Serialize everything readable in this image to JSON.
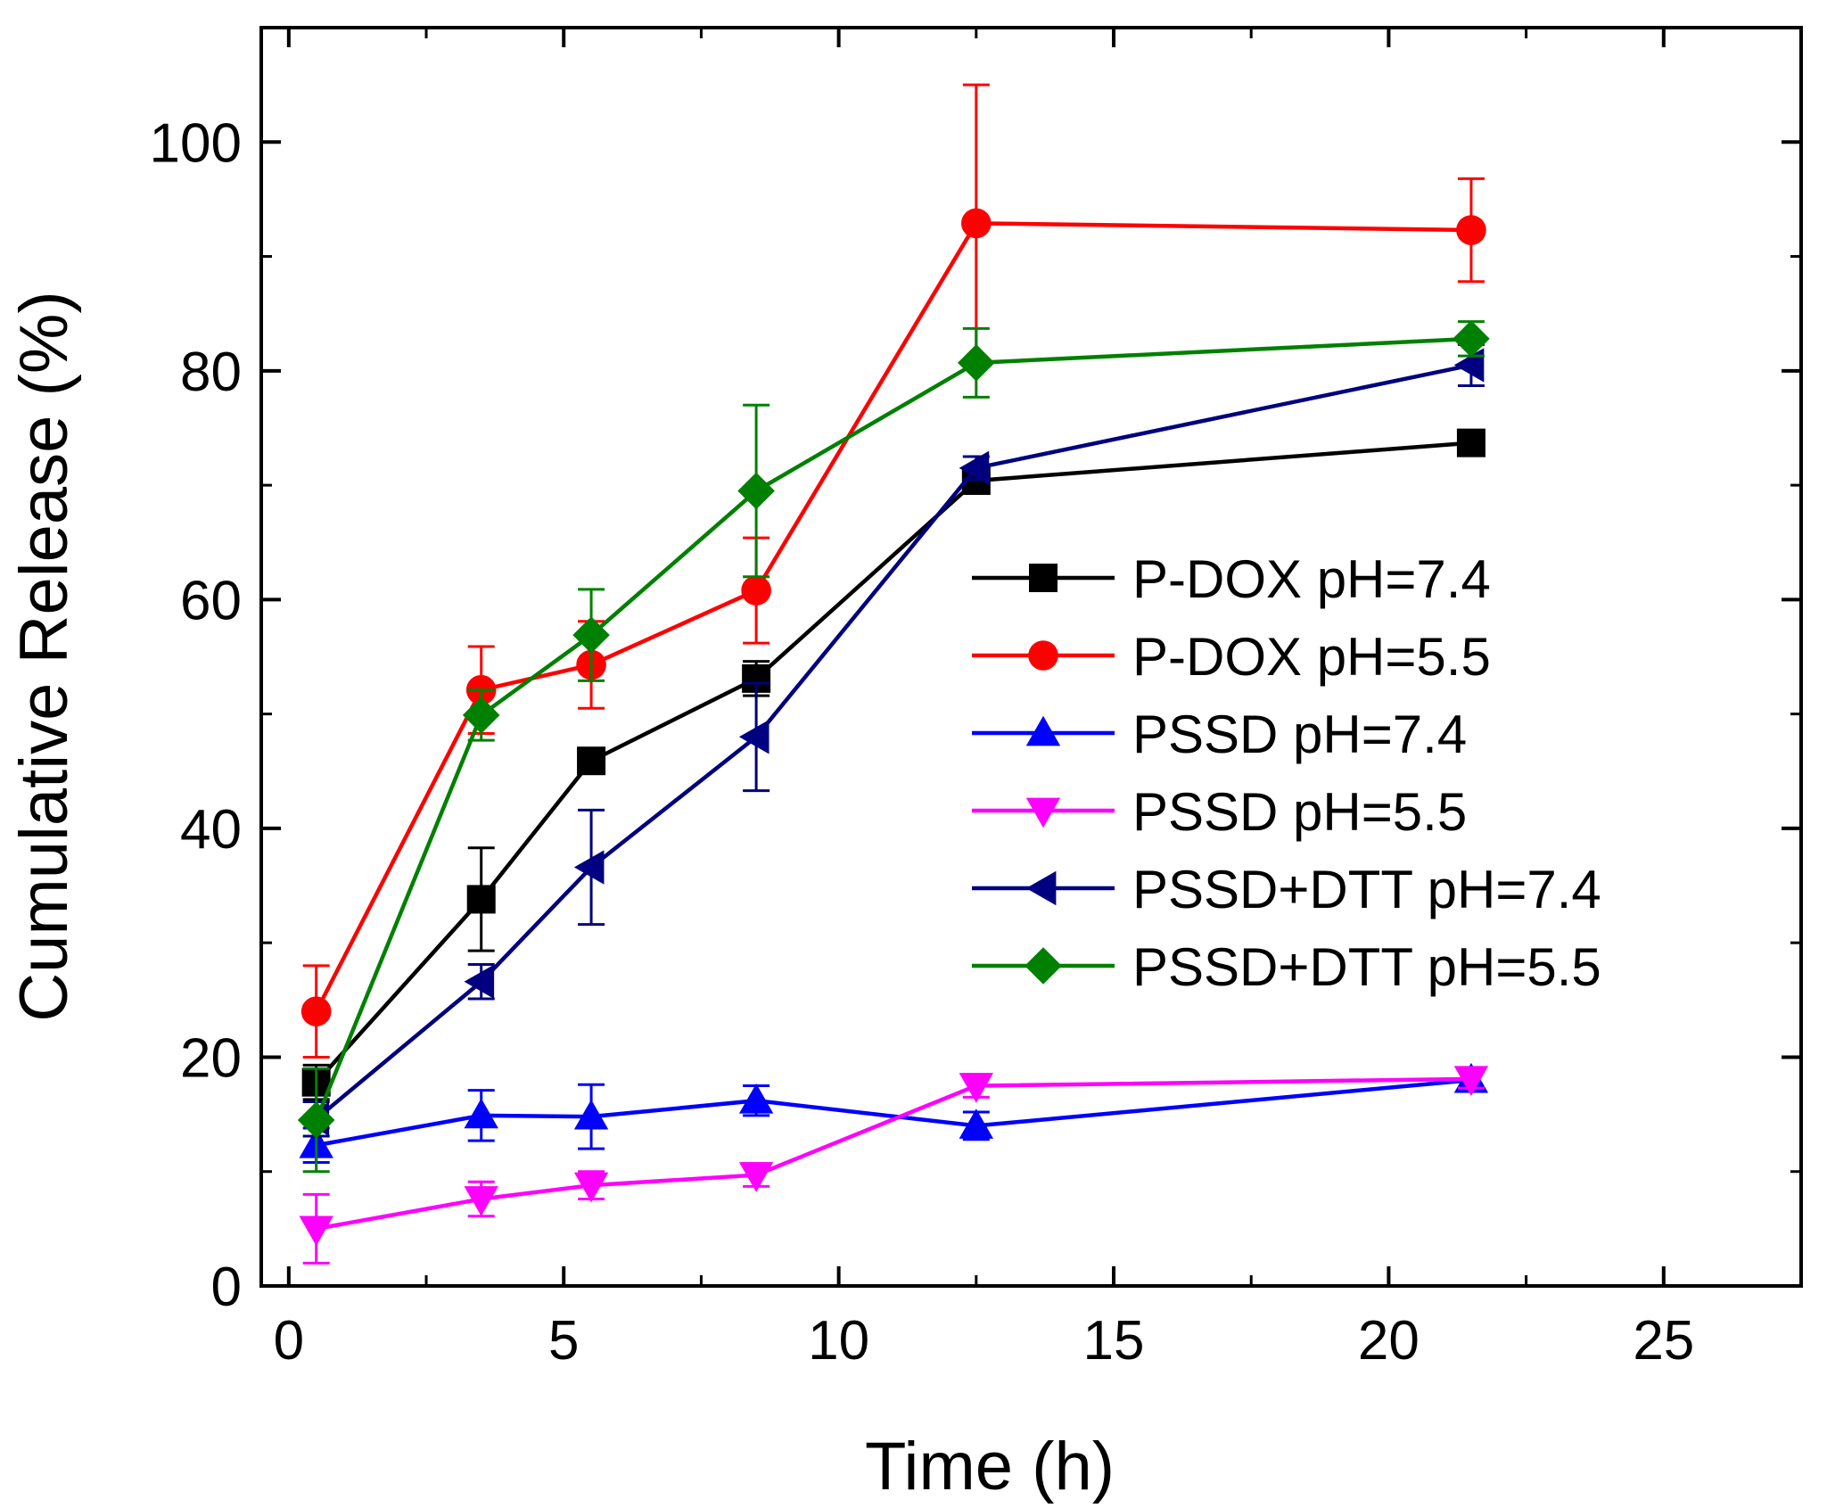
{
  "chart_data": {
    "type": "line",
    "title": "",
    "xlabel": "Time (h)",
    "ylabel": "Cumulative Release (%)",
    "xlim": [
      -0.5,
      27.5
    ],
    "ylim": [
      0,
      110
    ],
    "xticks": [
      0,
      5,
      10,
      15,
      20,
      25
    ],
    "xtick_labels": [
      "0",
      "5",
      "10",
      "15",
      "20",
      "25"
    ],
    "yticks": [
      0,
      20,
      40,
      60,
      80,
      100
    ],
    "ytick_labels": [
      "0",
      "20",
      "40",
      "60",
      "80",
      "100"
    ],
    "grid": false,
    "legend_position": "center-right",
    "x": [
      0.5,
      3.5,
      5.5,
      8.5,
      12.5,
      21.5
    ],
    "series": [
      {
        "name": "P-DOX pH=7.4",
        "color": "#000000",
        "marker": "square",
        "values": [
          17.8,
          33.8,
          45.9,
          53.1,
          70.4,
          73.7
        ],
        "errors": [
          1.5,
          4.5,
          1.0,
          1.5,
          1.0,
          1.0
        ]
      },
      {
        "name": "P-DOX pH=5.5",
        "color": "#ff0000",
        "marker": "circle",
        "values": [
          24.0,
          52.1,
          54.3,
          60.8,
          92.9,
          92.3
        ],
        "errors": [
          4.0,
          3.8,
          3.8,
          4.6,
          12.1,
          4.5
        ]
      },
      {
        "name": "PSSD pH=7.4",
        "color": "#0000ff",
        "marker": "triangle-up",
        "values": [
          12.3,
          14.9,
          14.8,
          16.2,
          14.0,
          18.0
        ],
        "errors": [
          1.5,
          2.2,
          2.8,
          1.3,
          1.2,
          0.8
        ]
      },
      {
        "name": "PSSD pH=5.5",
        "color": "#ff00ff",
        "marker": "triangle-down",
        "values": [
          5.0,
          7.6,
          8.8,
          9.7,
          17.5,
          18.1
        ],
        "errors": [
          3.0,
          1.5,
          1.2,
          1.0,
          1.0,
          0.8
        ]
      },
      {
        "name": "PSSD+DTT pH=7.4",
        "color": "#000080",
        "marker": "triangle-left",
        "values": [
          14.6,
          26.6,
          36.6,
          48.0,
          71.5,
          80.5
        ],
        "errors": [
          1.5,
          1.5,
          5.0,
          4.7,
          1.0,
          1.8
        ]
      },
      {
        "name": "PSSD+DTT pH=5.5",
        "color": "#008000",
        "marker": "diamond",
        "values": [
          14.5,
          49.9,
          56.9,
          69.5,
          80.7,
          82.8
        ],
        "errors": [
          4.5,
          2.2,
          4.0,
          7.5,
          3.0,
          1.5
        ]
      }
    ]
  }
}
